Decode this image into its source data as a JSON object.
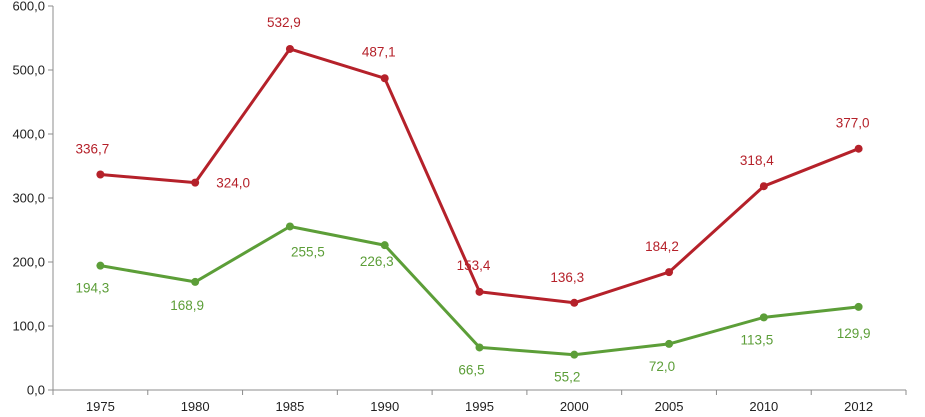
{
  "chart_data": {
    "type": "line",
    "categories": [
      "1975",
      "1980",
      "1985",
      "1990",
      "1995",
      "2000",
      "2005",
      "2010",
      "2012"
    ],
    "series": [
      {
        "color": "#b5212a",
        "values": [
          336.7,
          324.0,
          532.9,
          487.1,
          153.4,
          136.3,
          184.2,
          318.4,
          377.0
        ],
        "labels": [
          "336,7",
          "324,0",
          "532,9",
          "487,1",
          "153,4",
          "136,3",
          "184,2",
          "318,4",
          "377,0"
        ]
      },
      {
        "color": "#5c9e38",
        "values": [
          194.3,
          168.9,
          255.5,
          226.3,
          66.5,
          55.2,
          72.0,
          113.5,
          129.9
        ],
        "labels": [
          "194,3",
          "168,9",
          "255,5",
          "226,3",
          "66,5",
          "55,2",
          "72,0",
          "113,5",
          "129,9"
        ]
      }
    ],
    "ylim": [
      0,
      600
    ],
    "y_ticks": [
      0,
      100,
      200,
      300,
      400,
      500,
      600
    ],
    "y_tick_labels": [
      "0,0",
      "100,0",
      "200,0",
      "300,0",
      "400,0",
      "500,0",
      "600,0"
    ],
    "grid": false,
    "legend": "none",
    "title": "",
    "xlabel": "",
    "ylabel": ""
  }
}
